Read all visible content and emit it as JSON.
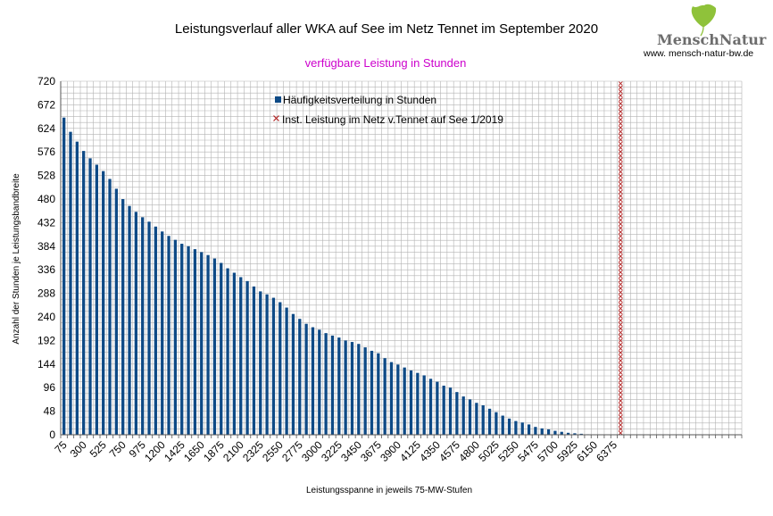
{
  "logo": {
    "name_part1": "Mensch",
    "name_part2": "Natur",
    "url": "www. mensch-natur-bw.de",
    "leaf_color": "#8fc23a",
    "text_color": "#6d6d6d"
  },
  "colors": {
    "bar": "#0e4a86",
    "marker": "#b22222",
    "subtitle": "#cc00cc",
    "grid": "#b3b3b3"
  },
  "chart_data": {
    "type": "bar",
    "title": "Leistungsverlauf aller WKA auf See im Netz Tennet im September 2020",
    "subtitle": "verfügbare Leistung in Stunden",
    "xlabel": "Leistungsspanne in jeweils 75-MW-Stufen",
    "ylabel": "Anzahl der Stunden je Leistungsbandbreite",
    "ylim": [
      0,
      720
    ],
    "yticks": [
      0,
      48,
      96,
      144,
      192,
      240,
      288,
      336,
      384,
      432,
      480,
      528,
      576,
      624,
      672,
      720
    ],
    "x_tick_labels": [
      "75",
      "300",
      "525",
      "750",
      "975",
      "1200",
      "1425",
      "1650",
      "1875",
      "2100",
      "2325",
      "2550",
      "2775",
      "3000",
      "3225",
      "3450",
      "3675",
      "3900",
      "4125",
      "4350",
      "4575",
      "4800",
      "5025",
      "5250",
      "5475",
      "5700",
      "5925",
      "6150",
      "6375"
    ],
    "x_start": 75,
    "x_step": 75,
    "grid": true,
    "legend_position": "top-center",
    "series": [
      {
        "name": "Häufigkeitsverteilung in Stunden",
        "type": "bar",
        "values": [
          646,
          617,
          597,
          578,
          563,
          550,
          537,
          521,
          501,
          480,
          466,
          454,
          443,
          434,
          424,
          414,
          405,
          397,
          389,
          384,
          378,
          372,
          366,
          359,
          350,
          339,
          330,
          321,
          313,
          302,
          292,
          286,
          279,
          270,
          259,
          246,
          236,
          226,
          219,
          214,
          207,
          202,
          198,
          192,
          189,
          185,
          178,
          171,
          166,
          156,
          148,
          143,
          137,
          131,
          126,
          121,
          114,
          108,
          100,
          96,
          87,
          78,
          72,
          65,
          60,
          53,
          46,
          39,
          33,
          28,
          25,
          21,
          16,
          13,
          11,
          8,
          6,
          4,
          3,
          2,
          1,
          0,
          0,
          0,
          0,
          0,
          0,
          0,
          0,
          0,
          0,
          0,
          0,
          0,
          0,
          0,
          0,
          0,
          0,
          0,
          0,
          0,
          0
        ]
      },
      {
        "name": "Inst. Leistung im Netz v.Tennet auf See 1/2019",
        "type": "marker-column",
        "x": 6475,
        "value": 720
      }
    ]
  }
}
